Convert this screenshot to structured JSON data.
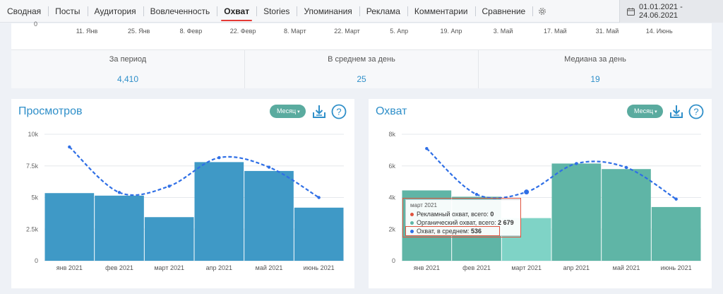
{
  "nav": {
    "tabs": [
      "Сводная",
      "Посты",
      "Аудитория",
      "Вовлеченность",
      "Охват",
      "Stories",
      "Упоминания",
      "Реклама",
      "Комментарии",
      "Сравнение"
    ],
    "active_tab": "Охват",
    "date_range": "01.01.2021 - 24.06.2021"
  },
  "top_chart": {
    "y_zero_label": "0",
    "x_labels": [
      "11. Янв",
      "25. Янв",
      "8. Февр",
      "22. Февр",
      "8. Март",
      "22. Март",
      "5. Апр",
      "19. Апр",
      "3. Май",
      "17. Май",
      "31. Май",
      "14. Июнь"
    ]
  },
  "stats": [
    {
      "label": "За период",
      "value": "4,410"
    },
    {
      "label": "В среднем за день",
      "value": "25"
    },
    {
      "label": "Медиана за день",
      "value": "19"
    }
  ],
  "cards": {
    "views": {
      "title": "Просмотров",
      "period_label": "Месяц"
    },
    "reach": {
      "title": "Охват",
      "period_label": "Месяц"
    }
  },
  "tooltip": {
    "title": "март 2021",
    "rows": [
      {
        "label": "Рекламный охват, всего:",
        "value": "0"
      },
      {
        "label": "Органический охват, всего:",
        "value": "2 679"
      },
      {
        "label": "Охват, в среднем:",
        "value": "536"
      }
    ]
  },
  "colors": {
    "accent": "#2f8fc9",
    "views_bar": "#3f99c6",
    "reach_bar": "#5fb5a6",
    "reach_bar_highlight": "#7fd3c6",
    "trend_line": "#2f6fe6",
    "period_button": "#5aab9f",
    "active_tab_underline": "#e53935",
    "highlight_box": "#e0533f"
  },
  "chart_data": [
    {
      "type": "bar",
      "title": "Просмотров",
      "categories": [
        "янв 2021",
        "фев 2021",
        "март 2021",
        "апр 2021",
        "май 2021",
        "июнь 2021"
      ],
      "series": [
        {
          "values": [
            5350,
            5150,
            3450,
            7800,
            7100,
            4200
          ]
        },
        {
          "values": [
            9000,
            5400,
            5900,
            8150,
            7400,
            5000
          ]
        }
      ],
      "yticks": [
        "0",
        "2.5k",
        "5k",
        "7.5k",
        "10k"
      ],
      "ylim": [
        0,
        10000
      ],
      "grid": true
    },
    {
      "type": "bar",
      "title": "Охват",
      "categories": [
        "янв 2021",
        "фев 2021",
        "март 2021",
        "апр 2021",
        "май 2021",
        "июнь 2021"
      ],
      "series": [
        {
          "values": [
            4450,
            4050,
            2700,
            6150,
            5800,
            3400
          ]
        },
        {
          "values": [
            7100,
            4200,
            4350,
            6150,
            5900,
            3900
          ]
        }
      ],
      "yticks": [
        "0",
        "2k",
        "4k",
        "6k",
        "8k"
      ],
      "ylim": [
        0,
        8000
      ],
      "grid": true,
      "highlighted_category": "март 2021"
    }
  ]
}
